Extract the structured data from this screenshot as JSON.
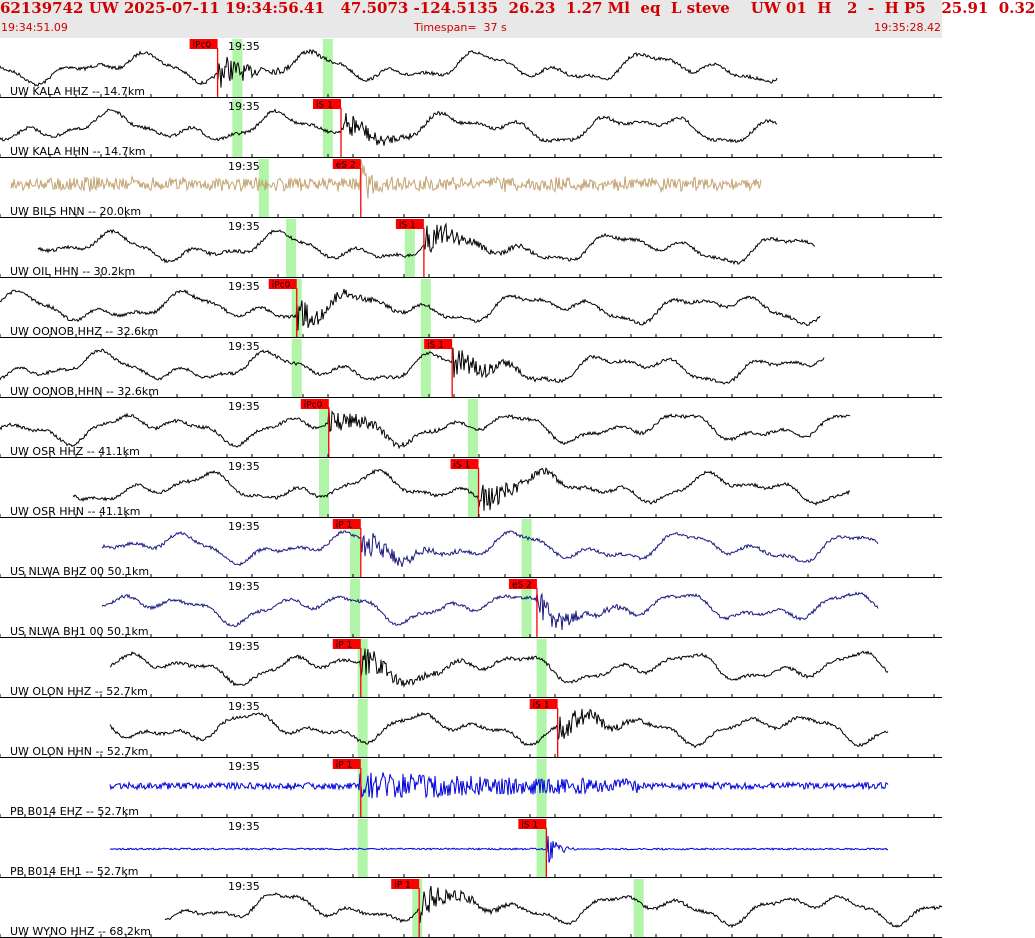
{
  "header": {
    "event_line": "62139742 UW 2025-07-11 19:34:56.41   47.5073 -124.5135  26.23  1.27 Ml  eq  L steve    UW 01  H   2  -  H P5   25.91  0.32",
    "start_time": "19:34:51.09",
    "timespan": "Timespan=  37 s",
    "end_time": "19:35:28.42"
  },
  "colors": {
    "header_bg": "#e8e8e8",
    "header_text": "#d00000",
    "pick_flag": "#ff0000",
    "window_band": "#b0f5a8",
    "trace_black": "#000000",
    "trace_tan": "#c4a474",
    "trace_navy": "#1a1a80",
    "trace_blue": "#0000dd"
  },
  "minute_tick_label": "19:35",
  "traces": [
    {
      "label": "UW KALA HHZ -- 14.7km",
      "color": "#000000",
      "pick": "iPc0",
      "pick_t": 0.231,
      "bands": [
        0.252,
        0.348
      ],
      "start": 0.0,
      "end": 0.825,
      "style": "quake"
    },
    {
      "label": "UW KALA HHN -- 14.7km",
      "color": "#000000",
      "pick": "iS 1",
      "pick_t": 0.362,
      "bands": [
        0.252,
        0.348
      ],
      "start": 0.0,
      "end": 0.825,
      "style": "quake"
    },
    {
      "label": "UW BILS HNN -- 20.0km",
      "color": "#c4a474",
      "pick": "eS 2",
      "pick_t": 0.383,
      "bands": [
        0.28
      ],
      "start": 0.012,
      "end": 0.808,
      "style": "noise"
    },
    {
      "label": "UW OIL HHN -- 30.2km",
      "color": "#000000",
      "pick": "iS 1",
      "pick_t": 0.45,
      "bands": [
        0.309,
        0.435
      ],
      "start": 0.04,
      "end": 0.865,
      "style": "quake"
    },
    {
      "label": "UW OONOB HHZ -- 32.6km",
      "color": "#000000",
      "pick": "iPc0",
      "pick_t": 0.315,
      "bands": [
        0.315,
        0.452
      ],
      "start": 0.0,
      "end": 0.87,
      "style": "quake"
    },
    {
      "label": "UW OONOB HHN -- 32.6km",
      "color": "#000000",
      "pick": "iS 1",
      "pick_t": 0.48,
      "bands": [
        0.315,
        0.452
      ],
      "start": 0.0,
      "end": 0.875,
      "style": "quake"
    },
    {
      "label": "UW OSR HHZ -- 41.1km",
      "color": "#000000",
      "pick": "iPc0",
      "pick_t": 0.349,
      "bands": [
        0.344,
        0.502
      ],
      "start": 0.0,
      "end": 0.902,
      "style": "quake"
    },
    {
      "label": "UW OSR HHN -- 41.1km",
      "color": "#000000",
      "pick": "iS 1",
      "pick_t": 0.508,
      "bands": [
        0.344,
        0.502
      ],
      "start": 0.077,
      "end": 0.902,
      "style": "quake"
    },
    {
      "label": "US NLWA BHZ 00 50.1km",
      "color": "#1a1a80",
      "pick": "iP 1",
      "pick_t": 0.383,
      "bands": [
        0.377,
        0.559
      ],
      "start": 0.108,
      "end": 0.932,
      "style": "quake"
    },
    {
      "label": "US NLWA BH1 00 50.1km",
      "color": "#1a1a80",
      "pick": "eS 2",
      "pick_t": 0.57,
      "bands": [
        0.377,
        0.559
      ],
      "start": 0.108,
      "end": 0.932,
      "style": "quake"
    },
    {
      "label": "UW OLON HHZ -- 52.7km",
      "color": "#000000",
      "pick": "iP 1",
      "pick_t": 0.383,
      "bands": [
        0.385,
        0.575
      ],
      "start": 0.117,
      "end": 0.943,
      "style": "quake"
    },
    {
      "label": "UW OLON HHN -- 52.7km",
      "color": "#000000",
      "pick": "iS 1",
      "pick_t": 0.592,
      "bands": [
        0.385,
        0.575
      ],
      "start": 0.117,
      "end": 0.943,
      "style": "quake"
    },
    {
      "label": "PB B014 EHZ -- 52.7km",
      "color": "#0000dd",
      "pick": "iP 1",
      "pick_t": 0.383,
      "bands": [
        0.385,
        0.575
      ],
      "start": 0.117,
      "end": 0.943,
      "style": "noisy"
    },
    {
      "label": "PB B014 EH1 -- 52.7km",
      "color": "#0000dd",
      "pick": "iS 1",
      "pick_t": 0.58,
      "bands": [
        0.385,
        0.575
      ],
      "start": 0.117,
      "end": 0.943,
      "style": "flat"
    },
    {
      "label": "UW WYNO HHZ -- 68.2km",
      "color": "#000000",
      "pick": "iP 1",
      "pick_t": 0.445,
      "bands": [
        0.443,
        0.678
      ],
      "start": 0.175,
      "end": 1.0,
      "style": "quake"
    }
  ]
}
